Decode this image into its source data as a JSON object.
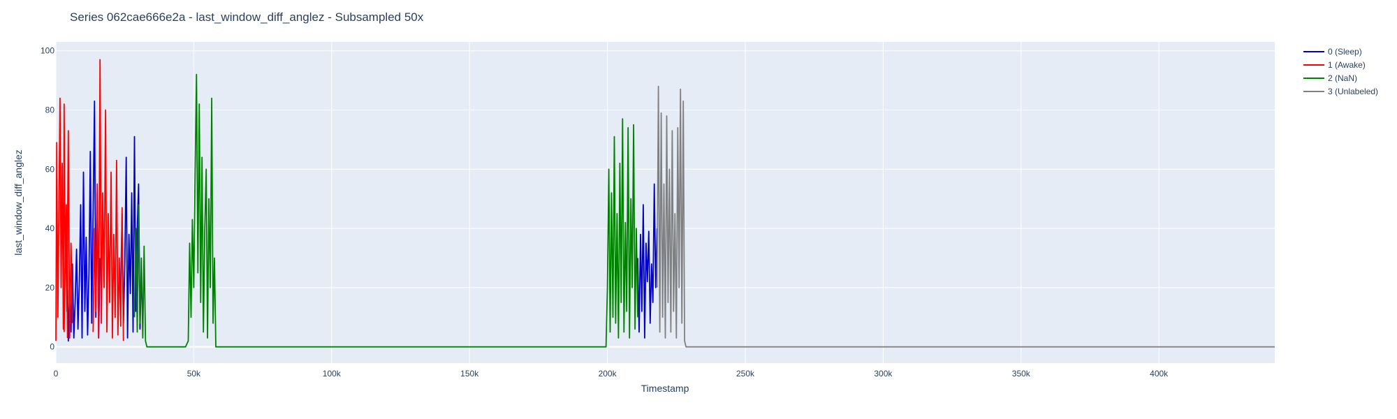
{
  "chart_data": {
    "type": "line",
    "title": "Series 062cae666e2a - last_window_diff_anglez - Subsampled 50x",
    "xlabel": "Timestamp",
    "ylabel": "last_window_diff_anglez",
    "xlim": [
      0,
      442000
    ],
    "ylim": [
      -5.5,
      103
    ],
    "xticks": [
      0,
      50000,
      100000,
      150000,
      200000,
      250000,
      300000,
      350000,
      400000
    ],
    "xtick_labels": [
      "0",
      "50k",
      "100k",
      "150k",
      "200k",
      "250k",
      "300k",
      "350k",
      "400k"
    ],
    "yticks": [
      0,
      20,
      40,
      60,
      80,
      100
    ],
    "ytick_labels": [
      "0",
      "20",
      "40",
      "60",
      "80",
      "100"
    ],
    "grid": true,
    "legend_position": "right",
    "series": [
      {
        "name": "0 (Sleep)",
        "color": "#0000cc",
        "segments": [
          [
            [
              4000,
              35
            ],
            [
              4500,
              2
            ],
            [
              5000,
              18
            ],
            [
              5500,
              5
            ],
            [
              6000,
              28
            ],
            [
              6500,
              3
            ],
            [
              7000,
              15
            ],
            [
              7500,
              33
            ],
            [
              8000,
              6
            ],
            [
              8500,
              22
            ],
            [
              9000,
              48
            ],
            [
              9500,
              3
            ],
            [
              10000,
              59
            ],
            [
              10500,
              12
            ],
            [
              11000,
              37
            ],
            [
              11500,
              4
            ],
            [
              12000,
              25
            ],
            [
              12500,
              66
            ],
            [
              13000,
              8
            ],
            [
              13500,
              45
            ],
            [
              14000,
              83
            ],
            [
              14500,
              10
            ],
            [
              15000,
              52
            ],
            [
              15500,
              3
            ],
            [
              16000,
              30
            ]
          ],
          [
            [
              23500,
              20
            ],
            [
              24000,
              45
            ],
            [
              24500,
              8
            ],
            [
              25000,
              28
            ],
            [
              25500,
              64
            ],
            [
              26000,
              3
            ],
            [
              26500,
              38
            ],
            [
              27000,
              18
            ],
            [
              27500,
              52
            ],
            [
              28000,
              5
            ],
            [
              28500,
              71
            ],
            [
              29000,
              12
            ],
            [
              29500,
              40
            ],
            [
              30000,
              55
            ],
            [
              30500,
              6
            ],
            [
              31000,
              25
            ]
          ],
          [
            [
              211000,
              30
            ],
            [
              211500,
              5
            ],
            [
              212000,
              38
            ],
            [
              212500,
              12
            ],
            [
              213000,
              48
            ],
            [
              213500,
              3
            ],
            [
              214000,
              35
            ],
            [
              214500,
              22
            ],
            [
              215000,
              39
            ],
            [
              215500,
              8
            ],
            [
              216000,
              28
            ],
            [
              216500,
              15
            ],
            [
              217000,
              55
            ],
            [
              217500,
              20
            ],
            [
              218000,
              40
            ]
          ]
        ]
      },
      {
        "name": "1 (Awake)",
        "color": "#ff0000",
        "segments": [
          [
            [
              0,
              2
            ],
            [
              300,
              69
            ],
            [
              700,
              10
            ],
            [
              1100,
              45
            ],
            [
              1500,
              84
            ],
            [
              1900,
              20
            ],
            [
              2300,
              62
            ],
            [
              2700,
              6
            ],
            [
              3000,
              82
            ],
            [
              3400,
              25
            ],
            [
              3800,
              48
            ],
            [
              4200,
              3
            ]
          ],
          [
            [
              3000,
              5
            ],
            [
              3500,
              40
            ],
            [
              4000,
              12
            ],
            [
              4500,
              73
            ],
            [
              5000,
              3
            ],
            [
              5500,
              35
            ],
            [
              6000,
              8
            ]
          ],
          [
            [
              13500,
              5
            ],
            [
              14000,
              40
            ],
            [
              14500,
              12
            ],
            [
              15000,
              55
            ],
            [
              15500,
              3
            ],
            [
              16000,
              97
            ],
            [
              16500,
              8
            ],
            [
              17000,
              52
            ],
            [
              17500,
              20
            ],
            [
              18000,
              80
            ],
            [
              18500,
              5
            ],
            [
              19000,
              45
            ],
            [
              19500,
              15
            ],
            [
              20000,
              59
            ],
            [
              20500,
              3
            ],
            [
              21000,
              38
            ],
            [
              21500,
              10
            ],
            [
              22000,
              63
            ],
            [
              22500,
              4
            ],
            [
              23000,
              30
            ],
            [
              23500,
              7
            ],
            [
              24000,
              47
            ],
            [
              24500,
              2
            ]
          ]
        ]
      },
      {
        "name": "2 (NaN)",
        "color": "#008000",
        "segments": [
          [
            [
              28500,
              10
            ],
            [
              29000,
              40
            ],
            [
              29500,
              5
            ],
            [
              30000,
              48
            ],
            [
              30500,
              8
            ],
            [
              31000,
              30
            ],
            [
              31500,
              3
            ],
            [
              32000,
              34
            ],
            [
              32500,
              2
            ],
            [
              33000,
              0
            ],
            [
              40000,
              0
            ],
            [
              47000,
              0
            ],
            [
              48000,
              2
            ],
            [
              48500,
              35
            ],
            [
              49000,
              10
            ],
            [
              49500,
              43
            ],
            [
              50000,
              20
            ],
            [
              50500,
              60
            ],
            [
              51000,
              92
            ],
            [
              51500,
              25
            ],
            [
              52000,
              82
            ],
            [
              52500,
              15
            ],
            [
              53000,
              64
            ],
            [
              53500,
              5
            ],
            [
              54000,
              40
            ],
            [
              54500,
              60
            ],
            [
              55000,
              3
            ],
            [
              55500,
              50
            ],
            [
              56000,
              20
            ],
            [
              56500,
              84
            ],
            [
              57000,
              8
            ],
            [
              57500,
              30
            ],
            [
              58000,
              0
            ],
            [
              100000,
              0
            ],
            [
              150000,
              0
            ],
            [
              199500,
              0
            ],
            [
              200000,
              20
            ],
            [
              200500,
              60
            ],
            [
              201000,
              5
            ],
            [
              201500,
              52
            ],
            [
              202000,
              10
            ],
            [
              202500,
              71
            ],
            [
              203000,
              8
            ],
            [
              203500,
              45
            ],
            [
              204000,
              3
            ],
            [
              204500,
              62
            ],
            [
              205000,
              15
            ],
            [
              205500,
              77
            ],
            [
              206000,
              5
            ],
            [
              206500,
              42
            ],
            [
              207000,
              12
            ],
            [
              207500,
              74
            ],
            [
              208000,
              3
            ],
            [
              208500,
              50
            ],
            [
              209000,
              20
            ],
            [
              209500,
              75
            ],
            [
              210000,
              6
            ],
            [
              210500,
              40
            ],
            [
              211000,
              10
            ]
          ]
        ]
      },
      {
        "name": "3 (Unlabeled)",
        "color": "#808080",
        "segments": [
          [
            [
              218000,
              20
            ],
            [
              218500,
              88
            ],
            [
              219000,
              5
            ],
            [
              219500,
              79
            ],
            [
              220000,
              10
            ],
            [
              220500,
              55
            ],
            [
              221000,
              3
            ],
            [
              221500,
              78
            ],
            [
              222000,
              15
            ],
            [
              222500,
              60
            ],
            [
              223000,
              5
            ],
            [
              223500,
              73
            ],
            [
              224000,
              12
            ],
            [
              224500,
              45
            ],
            [
              225000,
              3
            ],
            [
              225500,
              74
            ],
            [
              226000,
              20
            ],
            [
              226500,
              87
            ],
            [
              227000,
              8
            ],
            [
              227500,
              83
            ],
            [
              228000,
              2
            ],
            [
              228500,
              0
            ],
            [
              300000,
              0
            ],
            [
              400000,
              0
            ],
            [
              442000,
              0
            ]
          ]
        ]
      }
    ]
  }
}
